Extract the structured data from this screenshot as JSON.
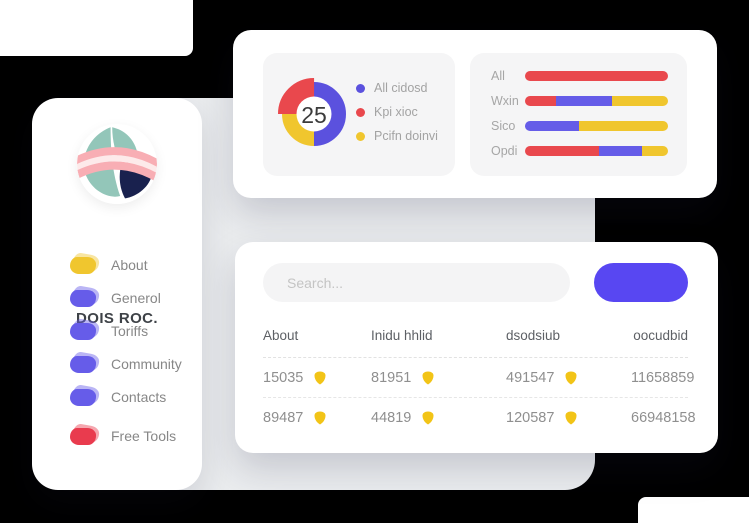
{
  "colors": {
    "background": "#000000",
    "backdrop_panel": "#ebedef",
    "inner_panel": "#f5f5f6",
    "accent_button": "#5847f2",
    "red": "#e9484d",
    "purple": "#655ce8",
    "yellow": "#f0c62e",
    "badge_yellow": "#f2c417",
    "donut_blue": "#5b51de"
  },
  "sidebar": {
    "brand": "DOIS ROC.",
    "items": [
      {
        "label": "About",
        "color": "#f0c62e",
        "spaced": false
      },
      {
        "label": "Generol",
        "color": "#665ce9",
        "spaced": false
      },
      {
        "label": "Toriffs",
        "color": "#665ce9",
        "spaced": false
      },
      {
        "label": "Community",
        "color": "#665ce9",
        "spaced": false
      },
      {
        "label": "Contacts",
        "color": "#665ce9",
        "spaced": false
      },
      {
        "label": "Free Tools",
        "color": "#e93b4e",
        "spaced": true
      }
    ]
  },
  "chart_data": [
    {
      "type": "pie",
      "style": "donut",
      "center_value": "25",
      "segments": [
        {
          "name": "All cidosd",
          "color": "#5b51de",
          "pct": 50,
          "thick": false
        },
        {
          "name": "Pcifn doinvi",
          "color": "#f0c62e",
          "pct": 25,
          "thick": false
        },
        {
          "name": "Kpi xioc",
          "color": "#e9484d",
          "pct": 25,
          "thick": true
        }
      ],
      "legend": [
        {
          "label": "All cidosd",
          "color": "#5b51de"
        },
        {
          "label": "Kpi xioc",
          "color": "#e9484d"
        },
        {
          "label": "Pcifn doinvi",
          "color": "#f0c62e"
        }
      ],
      "legend_position": "right"
    },
    {
      "type": "bar",
      "orientation": "horizontal-stacked",
      "rows": [
        {
          "label": "All",
          "segments": [
            {
              "color": "#e9484d",
              "pct": 100
            }
          ]
        },
        {
          "label": "Wxin",
          "segments": [
            {
              "color": "#e9484d",
              "pct": 22
            },
            {
              "color": "#655ce8",
              "pct": 39
            },
            {
              "color": "#f0c62e",
              "pct": 39
            }
          ]
        },
        {
          "label": "Sico",
          "segments": [
            {
              "color": "#655ce8",
              "pct": 38
            },
            {
              "color": "#f0c62e",
              "pct": 62
            }
          ]
        },
        {
          "label": "Opdi",
          "segments": [
            {
              "color": "#e9484d",
              "pct": 52
            },
            {
              "color": "#655ce8",
              "pct": 30
            },
            {
              "color": "#f0c62e",
              "pct": 18
            }
          ]
        }
      ]
    }
  ],
  "table_card": {
    "search_placeholder": "Search...",
    "headers": [
      "About",
      "Inidu hhlid",
      "dsodsiub",
      "oocudbid"
    ],
    "rows": [
      [
        "15035",
        "81951",
        "491547",
        "11658859"
      ],
      [
        "89487",
        "44819",
        "120587",
        "66948158"
      ]
    ]
  }
}
